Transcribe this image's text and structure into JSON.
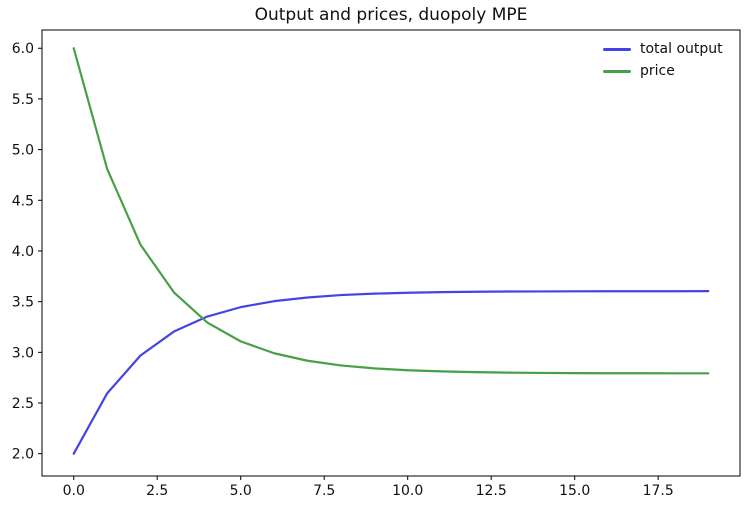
{
  "figure": {
    "background": "#ffffff",
    "spine_color": "#000000",
    "text_color": "#111111"
  },
  "chart_data": {
    "type": "line",
    "title": "Output and prices, duopoly MPE",
    "xlabel": "",
    "ylabel": "",
    "grid": false,
    "legend_position": "upper right",
    "legend_frame": false,
    "xlim": [
      -0.95,
      19.95
    ],
    "ylim": [
      1.78,
      6.18
    ],
    "x": [
      0,
      1,
      2,
      3,
      4,
      5,
      6,
      7,
      8,
      9,
      10,
      11,
      12,
      13,
      14,
      15,
      16,
      17,
      18,
      19
    ],
    "series": [
      {
        "name": "total output",
        "color": "#4444e6",
        "values": [
          2.0,
          2.595,
          2.969,
          3.205,
          3.353,
          3.446,
          3.505,
          3.541,
          3.565,
          3.579,
          3.588,
          3.594,
          3.598,
          3.6,
          3.601,
          3.602,
          3.603,
          3.603,
          3.603,
          3.604
        ]
      },
      {
        "name": "price",
        "color": "#46a046",
        "values": [
          6.0,
          4.81,
          4.061,
          3.591,
          3.294,
          3.108,
          2.991,
          2.917,
          2.871,
          2.842,
          2.823,
          2.812,
          2.805,
          2.8,
          2.797,
          2.795,
          2.794,
          2.794,
          2.793,
          2.793
        ]
      }
    ],
    "xticks": [
      {
        "value": 0.0,
        "label": "0.0"
      },
      {
        "value": 2.5,
        "label": "2.5"
      },
      {
        "value": 5.0,
        "label": "5.0"
      },
      {
        "value": 7.5,
        "label": "7.5"
      },
      {
        "value": 10.0,
        "label": "10.0"
      },
      {
        "value": 12.5,
        "label": "12.5"
      },
      {
        "value": 15.0,
        "label": "15.0"
      },
      {
        "value": 17.5,
        "label": "17.5"
      }
    ],
    "yticks": [
      {
        "value": 2.0,
        "label": "2.0"
      },
      {
        "value": 2.5,
        "label": "2.5"
      },
      {
        "value": 3.0,
        "label": "3.0"
      },
      {
        "value": 3.5,
        "label": "3.5"
      },
      {
        "value": 4.0,
        "label": "4.0"
      },
      {
        "value": 4.5,
        "label": "4.5"
      },
      {
        "value": 5.0,
        "label": "5.0"
      },
      {
        "value": 5.5,
        "label": "5.5"
      },
      {
        "value": 6.0,
        "label": "6.0"
      }
    ]
  }
}
